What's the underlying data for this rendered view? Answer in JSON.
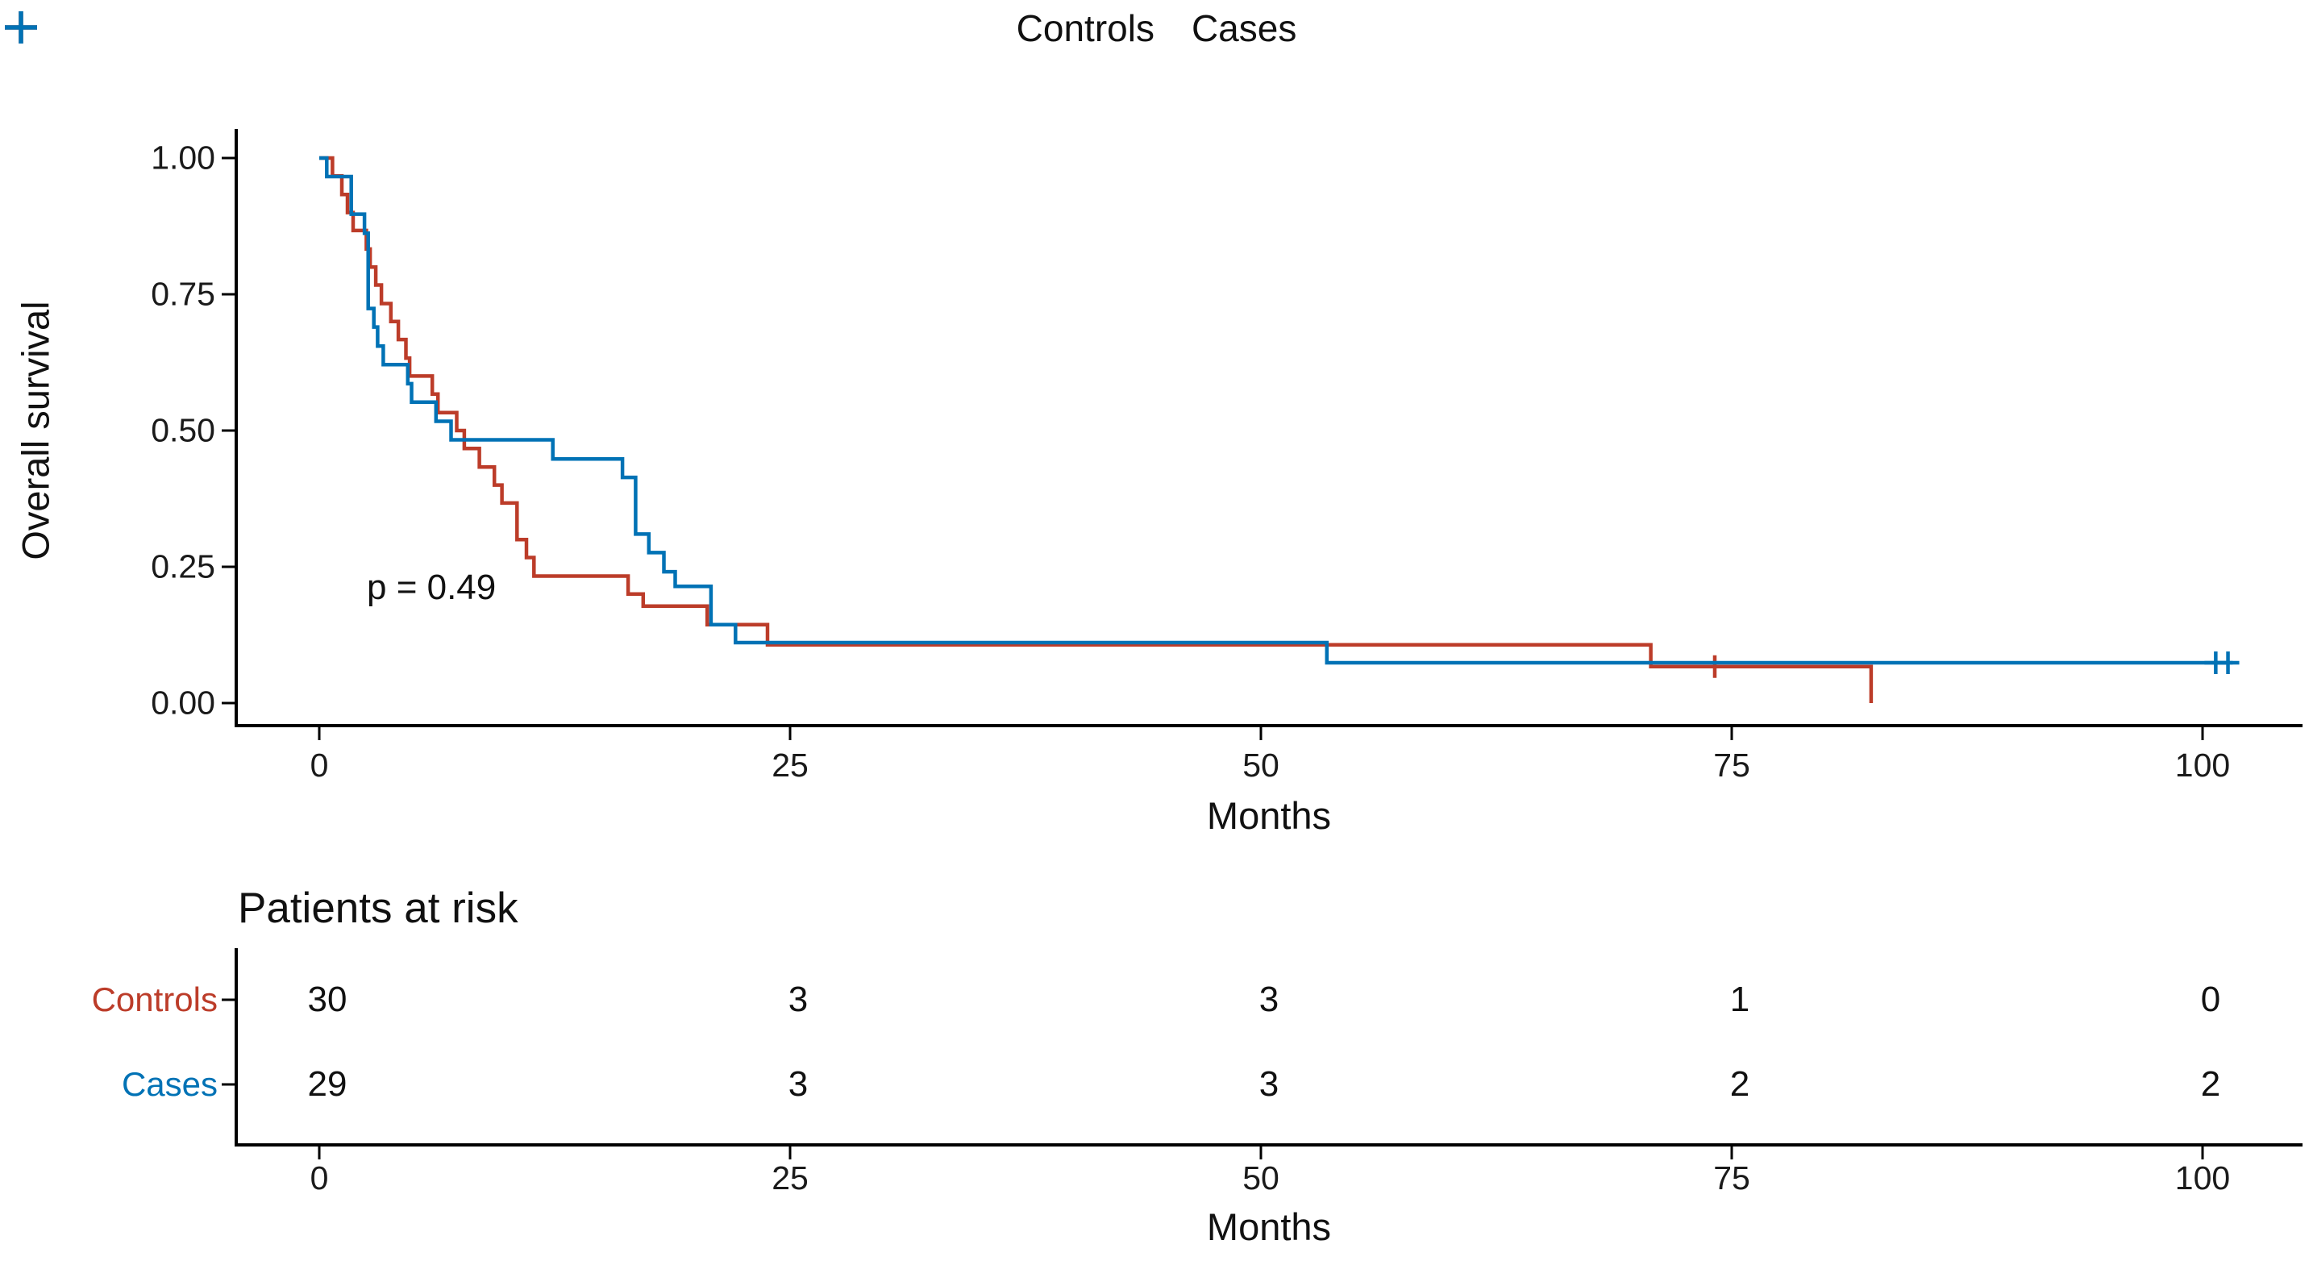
{
  "legend": {
    "items": [
      {
        "label": "Controls",
        "color": "#BC3C29"
      },
      {
        "label": "Cases",
        "color": "#0072B5"
      }
    ]
  },
  "annotation": {
    "p_value_label": "p = 0.49"
  },
  "axes": {
    "y_title": "Overall survival",
    "x_title": "Months",
    "y_ticks": [
      "1.00",
      "0.75",
      "0.50",
      "0.25",
      "0.00"
    ],
    "x_ticks": [
      "0",
      "25",
      "50",
      "75",
      "100"
    ]
  },
  "risk_table": {
    "title": "Patients at risk",
    "x_title": "Months",
    "x_ticks": [
      "0",
      "25",
      "50",
      "75",
      "100"
    ],
    "rows": [
      {
        "label": "Controls",
        "color": "#BC3C29",
        "counts": [
          "30",
          "3",
          "3",
          "1",
          "0"
        ]
      },
      {
        "label": "Cases",
        "color": "#0072B5",
        "counts": [
          "29",
          "3",
          "3",
          "2",
          "2"
        ]
      }
    ]
  },
  "chart_data": {
    "type": "line",
    "subtype": "kaplan-meier-step",
    "title": "",
    "xlabel": "Months",
    "ylabel": "Overall survival",
    "xlim": [
      0,
      105
    ],
    "ylim": [
      0,
      1
    ],
    "x_tick_values": [
      0,
      25,
      50,
      75,
      100
    ],
    "y_tick_values": [
      1.0,
      0.75,
      0.5,
      0.25,
      0.0
    ],
    "grid": false,
    "legend_position": "top",
    "annotation": {
      "text": "p = 0.49",
      "x": 2.5,
      "y": 0.21
    },
    "series": [
      {
        "name": "Controls",
        "color": "#BC3C29",
        "steps": [
          [
            0,
            1.0
          ],
          [
            0.7,
            0.967
          ],
          [
            1.2,
            0.933
          ],
          [
            1.5,
            0.9
          ],
          [
            1.8,
            0.867
          ],
          [
            2.5,
            0.833
          ],
          [
            2.7,
            0.8
          ],
          [
            3.0,
            0.767
          ],
          [
            3.3,
            0.733
          ],
          [
            3.8,
            0.7
          ],
          [
            4.2,
            0.667
          ],
          [
            4.6,
            0.633
          ],
          [
            4.8,
            0.6
          ],
          [
            6.0,
            0.567
          ],
          [
            6.3,
            0.533
          ],
          [
            7.3,
            0.5
          ],
          [
            7.7,
            0.467
          ],
          [
            8.5,
            0.433
          ],
          [
            9.3,
            0.4
          ],
          [
            9.7,
            0.367
          ],
          [
            10.5,
            0.3
          ],
          [
            11.0,
            0.267
          ],
          [
            11.4,
            0.233
          ],
          [
            16.4,
            0.2
          ],
          [
            17.2,
            0.178
          ],
          [
            20.6,
            0.144
          ],
          [
            23.8,
            0.107
          ],
          [
            70.7,
            0.067
          ]
        ],
        "censor_marks": [
          [
            74.1,
            0.067
          ]
        ],
        "end_x": 82.4,
        "end_drop_to": 0
      },
      {
        "name": "Cases",
        "color": "#0072B5",
        "steps": [
          [
            0,
            1.0
          ],
          [
            0.4,
            0.966
          ],
          [
            1.7,
            0.897
          ],
          [
            2.4,
            0.862
          ],
          [
            2.6,
            0.724
          ],
          [
            2.9,
            0.69
          ],
          [
            3.1,
            0.655
          ],
          [
            3.4,
            0.621
          ],
          [
            4.7,
            0.586
          ],
          [
            4.9,
            0.552
          ],
          [
            6.2,
            0.517
          ],
          [
            7.0,
            0.483
          ],
          [
            12.4,
            0.448
          ],
          [
            16.1,
            0.414
          ],
          [
            16.8,
            0.31
          ],
          [
            17.5,
            0.276
          ],
          [
            18.3,
            0.241
          ],
          [
            18.9,
            0.214
          ],
          [
            20.8,
            0.144
          ],
          [
            22.1,
            0.111
          ],
          [
            53.5,
            0.074
          ]
        ],
        "censor_marks": [
          [
            100.7,
            0.074
          ],
          [
            101.35,
            0.074
          ]
        ],
        "end_x": 101.6
      }
    ],
    "risk_table": {
      "title": "Patients at risk",
      "time_points": [
        0,
        25,
        50,
        75,
        100
      ],
      "groups": [
        {
          "name": "Controls",
          "at_risk": [
            30,
            3,
            3,
            1,
            0
          ]
        },
        {
          "name": "Cases",
          "at_risk": [
            29,
            3,
            3,
            2,
            2
          ]
        }
      ]
    }
  }
}
